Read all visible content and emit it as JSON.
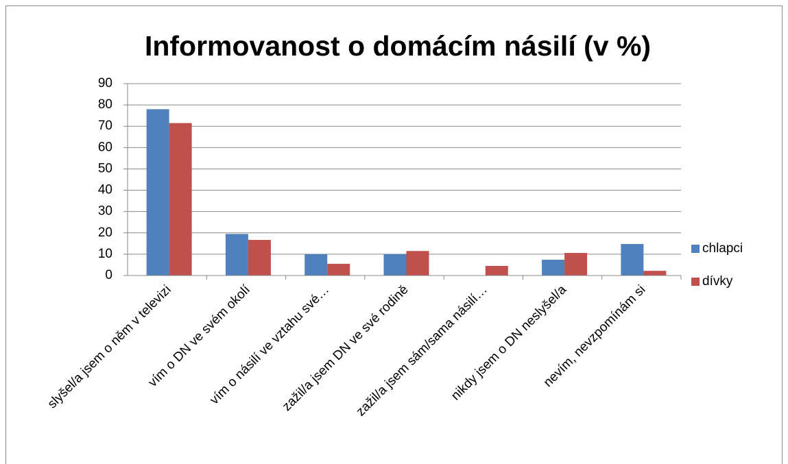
{
  "chart_data": {
    "type": "bar",
    "title": "Informovanost o domácím násilí (v %)",
    "categories": [
      "slyšel/a jsem o něm v televizi",
      "vím o DN ve svém okolí",
      "vím o násilí ve vztahu své…",
      "zažil/a jsem DN ve své rodině",
      "zažil/a jsem sám/sama násilí…",
      "nikdy jsem o DN neslyšel/a",
      "nevím, nevzpomínám si"
    ],
    "series": [
      {
        "name": "chlapci",
        "color": "#4f81bd",
        "values": [
          78,
          19.5,
          10,
          10,
          0,
          7.4,
          14.8
        ]
      },
      {
        "name": "dívky",
        "color": "#c0504d",
        "values": [
          71.5,
          16.7,
          5.5,
          11.5,
          4.5,
          10.6,
          2.2
        ]
      }
    ],
    "ylim": [
      0,
      90
    ],
    "yticks": [
      0,
      10,
      20,
      30,
      40,
      50,
      60,
      70,
      80,
      90
    ],
    "grid": true,
    "legend": "right"
  }
}
